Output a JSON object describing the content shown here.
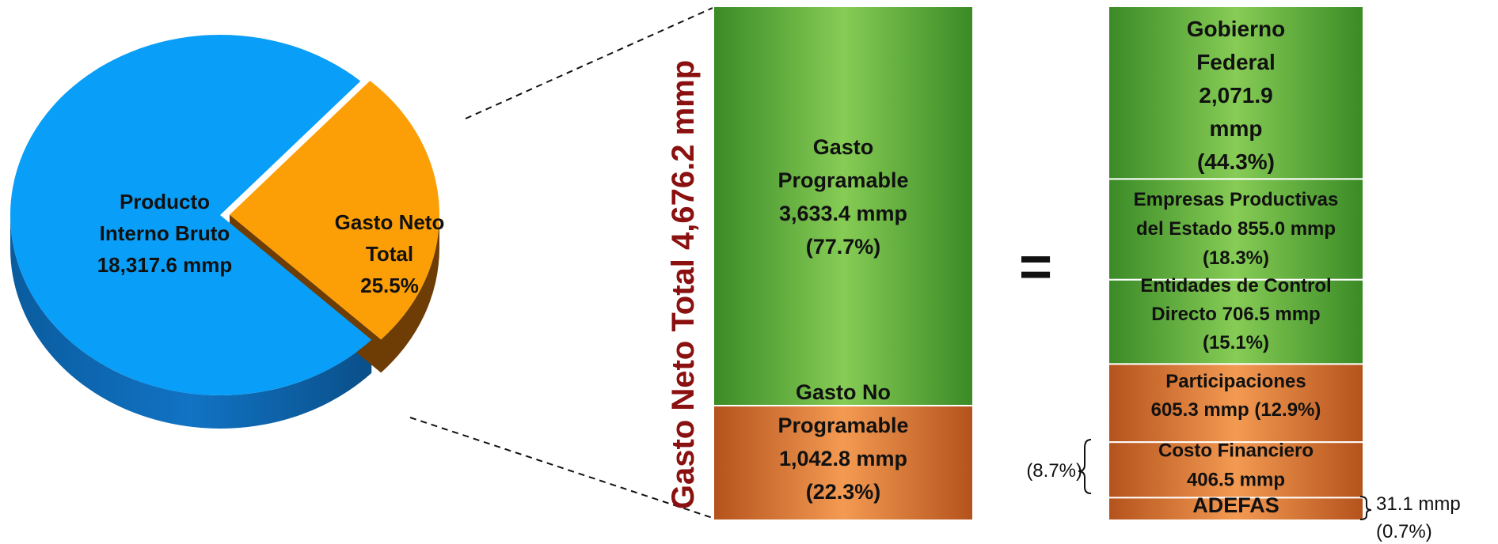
{
  "chart_data": [
    {
      "type": "pie",
      "slices": [
        {
          "label_lines": [
            "Producto",
            "Interno Bruto",
            "18,317.6 mmp"
          ],
          "value": 74.5,
          "color": "#099ef7"
        },
        {
          "label_lines": [
            "Gasto Neto",
            "Total",
            "25.5%"
          ],
          "value": 25.5,
          "color": "#fc9f06"
        }
      ]
    },
    {
      "type": "bar",
      "stacked": true,
      "title": "Gasto Neto Total 4,676.2 mmp",
      "total": 4676.2,
      "segments": [
        {
          "label_lines": [
            "Gasto",
            "Programable",
            "3,633.4 mmp",
            "(77.7%)"
          ],
          "value": 3633.4,
          "percent": 77.7,
          "color": "#6cbf45"
        },
        {
          "label_lines": [
            "Gasto No",
            "Programable",
            "1,042.8 mmp",
            "(22.3%)"
          ],
          "value": 1042.8,
          "percent": 22.3,
          "color": "#e5782f"
        }
      ]
    },
    {
      "type": "bar",
      "stacked": true,
      "segments": [
        {
          "label_lines": [
            "Gobierno",
            "Federal",
            "2,071.9",
            "mmp",
            "(44.3%)"
          ],
          "value": 2071.9,
          "percent": 44.3,
          "color": "#6cbf45"
        },
        {
          "label_lines": [
            "Empresas Productivas",
            "del Estado 855.0 mmp",
            "(18.3%)"
          ],
          "value": 855.0,
          "percent": 18.3,
          "color": "#6cbf45"
        },
        {
          "label_lines": [
            "Entidades de Control",
            "Directo 706.5 mmp",
            "(15.1%)"
          ],
          "value": 706.5,
          "percent": 15.1,
          "color": "#6cbf45"
        },
        {
          "label_lines": [
            "Participaciones",
            "605.3 mmp (12.9%)"
          ],
          "value": 605.3,
          "percent": 12.9,
          "color": "#e5782f"
        },
        {
          "label_lines": [
            "Costo Financiero",
            "406.5 mmp"
          ],
          "value": 406.5,
          "percent": 8.7,
          "color": "#e5782f"
        },
        {
          "label_lines": [
            "ADEFAS"
          ],
          "value": 31.1,
          "percent": 0.7,
          "color": "#e5782f"
        }
      ],
      "annotations": {
        "costo_financiero_percent": "(8.7%)",
        "adefas_value": "31.1 mmp",
        "adefas_percent": "(0.7%)"
      }
    }
  ],
  "equals_sign": "="
}
